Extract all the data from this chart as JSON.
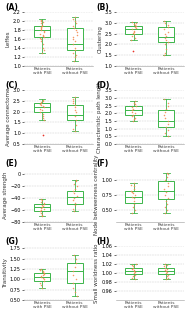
{
  "panels": [
    {
      "label": "A",
      "ylabel": "Leffes",
      "group1": {
        "median": 1.8,
        "q1": 1.65,
        "q3": 1.9,
        "whislo": 1.3,
        "whishi": 2.05,
        "points": [
          1.3,
          1.35,
          1.4,
          1.5,
          1.55,
          1.6,
          1.62,
          1.65,
          1.68,
          1.7,
          1.72,
          1.75,
          1.78,
          1.8,
          1.82,
          1.85,
          1.88,
          1.9,
          1.92,
          1.95,
          1.98,
          2.0,
          2.03
        ]
      },
      "group2": {
        "median": 1.5,
        "q1": 1.35,
        "q3": 1.85,
        "whislo": 1.1,
        "whishi": 2.1,
        "points": [
          1.1,
          1.2,
          1.25,
          1.3,
          1.35,
          1.4,
          1.5,
          1.55,
          1.6,
          1.65,
          1.7,
          1.75,
          1.8,
          1.85,
          1.9,
          1.95,
          2.0,
          2.05,
          2.1
        ]
      },
      "ylim": [
        1.0,
        2.2
      ],
      "yticks": [
        1.0,
        1.2,
        1.4,
        1.6,
        1.8,
        2.0,
        2.2
      ]
    },
    {
      "label": "B",
      "ylabel": "Clustering",
      "group1": {
        "median": 2.7,
        "q1": 2.5,
        "q3": 2.85,
        "whislo": 2.2,
        "whishi": 3.05,
        "points": [
          2.2,
          2.3,
          2.4,
          2.5,
          2.55,
          2.6,
          2.65,
          2.7,
          2.75,
          2.8,
          2.85,
          2.9,
          2.95,
          3.0,
          3.05
        ],
        "outliers_below": [
          1.7
        ]
      },
      "group2": {
        "median": 2.35,
        "q1": 2.1,
        "q3": 2.8,
        "whislo": 1.5,
        "whishi": 3.1,
        "points": [
          1.5,
          1.6,
          1.8,
          2.0,
          2.1,
          2.2,
          2.3,
          2.4,
          2.5,
          2.6,
          2.7,
          2.8,
          2.9,
          3.0,
          3.1
        ]
      },
      "ylim": [
        1.0,
        3.5
      ],
      "yticks": [
        1.0,
        1.5,
        2.0,
        2.5,
        3.0,
        3.5
      ]
    },
    {
      "label": "C",
      "ylabel": "Average connectome",
      "group1": {
        "median": 2.2,
        "q1": 2.0,
        "q3": 2.4,
        "whislo": 1.6,
        "whishi": 2.6,
        "points": [
          1.6,
          1.7,
          1.8,
          1.9,
          2.0,
          2.1,
          2.15,
          2.2,
          2.25,
          2.3,
          2.35,
          2.4,
          2.45,
          2.5,
          2.55
        ],
        "outliers_below": [
          0.9
        ]
      },
      "group2": {
        "median": 1.85,
        "q1": 1.6,
        "q3": 2.3,
        "whislo": 1.1,
        "whishi": 2.7,
        "points": [
          1.1,
          1.2,
          1.4,
          1.6,
          1.8,
          2.0,
          2.1,
          2.2,
          2.3,
          2.4,
          2.5,
          2.6,
          2.7
        ]
      },
      "ylim": [
        0.5,
        3.0
      ],
      "yticks": [
        0.5,
        1.0,
        1.5,
        2.0,
        2.5,
        3.0
      ]
    },
    {
      "label": "D",
      "ylabel": "Characteristic path length",
      "group1": {
        "median": 2.2,
        "q1": 1.9,
        "q3": 2.5,
        "whislo": 1.5,
        "whishi": 2.8,
        "points": [
          1.5,
          1.6,
          1.7,
          1.8,
          1.9,
          2.0,
          2.1,
          2.2,
          2.3,
          2.4,
          2.5,
          2.6,
          2.7,
          2.8
        ]
      },
      "group2": {
        "median": 1.5,
        "q1": 1.1,
        "q3": 2.2,
        "whislo": 0.5,
        "whishi": 2.9,
        "points": [
          0.5,
          0.7,
          0.9,
          1.1,
          1.3,
          1.5,
          1.7,
          1.9,
          2.1,
          2.3,
          2.5,
          2.7,
          2.9
        ]
      },
      "ylim": [
        0.0,
        3.5
      ],
      "yticks": [
        0.0,
        0.5,
        1.0,
        1.5,
        2.0,
        2.5,
        3.0,
        3.5
      ]
    },
    {
      "label": "E",
      "ylabel": "Average strength",
      "group1": {
        "median": -55,
        "q1": -62,
        "q3": -50,
        "whislo": -70,
        "whishi": -42,
        "points": [
          -70,
          -68,
          -65,
          -62,
          -60,
          -58,
          -56,
          -55,
          -53,
          -51,
          -50,
          -48,
          -46,
          -44,
          -42
        ]
      },
      "group2": {
        "median": -38,
        "q1": -50,
        "q3": -28,
        "whislo": -62,
        "whishi": -10,
        "points": [
          -62,
          -58,
          -52,
          -48,
          -44,
          -40,
          -36,
          -32,
          -28,
          -24,
          -20,
          -16,
          -12,
          -10
        ]
      },
      "ylim": [
        -80,
        10
      ],
      "yticks": [
        -80,
        -60,
        -40,
        -20,
        0
      ]
    },
    {
      "label": "F",
      "ylabel": "Node betweenness centrality",
      "group1": {
        "median": 0.72,
        "q1": 0.62,
        "q3": 0.82,
        "whislo": 0.45,
        "whishi": 0.95,
        "points": [
          0.45,
          0.5,
          0.55,
          0.6,
          0.65,
          0.7,
          0.72,
          0.75,
          0.78,
          0.8,
          0.82,
          0.85,
          0.9,
          0.92,
          0.95
        ]
      },
      "group2": {
        "median": 0.82,
        "q1": 0.68,
        "q3": 0.98,
        "whislo": 0.45,
        "whishi": 1.12,
        "points": [
          0.45,
          0.5,
          0.55,
          0.6,
          0.65,
          0.7,
          0.75,
          0.8,
          0.85,
          0.9,
          0.95,
          1.0,
          1.05,
          1.1,
          1.12
        ]
      },
      "ylim": [
        0.3,
        1.2
      ],
      "yticks": [
        0.5,
        0.75,
        1.0
      ]
    },
    {
      "label": "G",
      "ylabel": "Transitivity",
      "group1": {
        "median": 1.05,
        "q1": 0.95,
        "q3": 1.15,
        "whislo": 0.8,
        "whishi": 1.25,
        "points": [
          0.8,
          0.85,
          0.9,
          0.95,
          1.0,
          1.02,
          1.05,
          1.08,
          1.1,
          1.12,
          1.15,
          1.18,
          1.2,
          1.22,
          1.25
        ]
      },
      "group2": {
        "median": 1.2,
        "q1": 0.9,
        "q3": 1.4,
        "whislo": 0.6,
        "whishi": 1.6,
        "points": [
          0.6,
          0.7,
          0.8,
          0.9,
          1.0,
          1.1,
          1.2,
          1.3,
          1.4,
          1.5,
          1.6
        ]
      },
      "ylim": [
        0.5,
        1.8
      ],
      "yticks": [
        0.5,
        0.75,
        1.0,
        1.25,
        1.5,
        1.75
      ]
    },
    {
      "label": "H",
      "ylabel": "Small worldness ratio",
      "group1": {
        "median": 1.005,
        "q1": 0.998,
        "q3": 1.012,
        "whislo": 0.986,
        "whishi": 1.02,
        "points": [
          0.986,
          0.99,
          0.993,
          0.996,
          1.0,
          1.002,
          1.005,
          1.008,
          1.01,
          1.012,
          1.015,
          1.018,
          1.02
        ]
      },
      "group2": {
        "median": 1.005,
        "q1": 0.998,
        "q3": 1.012,
        "whislo": 0.986,
        "whishi": 1.02,
        "points": [
          0.986,
          0.99,
          0.993,
          0.996,
          1.0,
          1.002,
          1.005,
          1.008,
          1.01,
          1.012,
          1.015,
          1.018,
          1.02
        ]
      },
      "ylim": [
        0.94,
        1.06
      ],
      "yticks": [
        0.96,
        0.98,
        1.0,
        1.02,
        1.04,
        1.06
      ]
    }
  ],
  "group_labels": [
    "Patients\nwith PSE",
    "Patients\nwithout PSE"
  ],
  "box_color": "#3cb54a",
  "scatter_color": "#f4874b",
  "outlier_color": "#e8342a",
  "bg_color": "#ffffff",
  "grid_color": "#cccccc",
  "panel_label_fontsize": 5.5,
  "tick_fontsize": 3.5,
  "ylabel_fontsize": 4.0,
  "xtick_fontsize": 3.2
}
